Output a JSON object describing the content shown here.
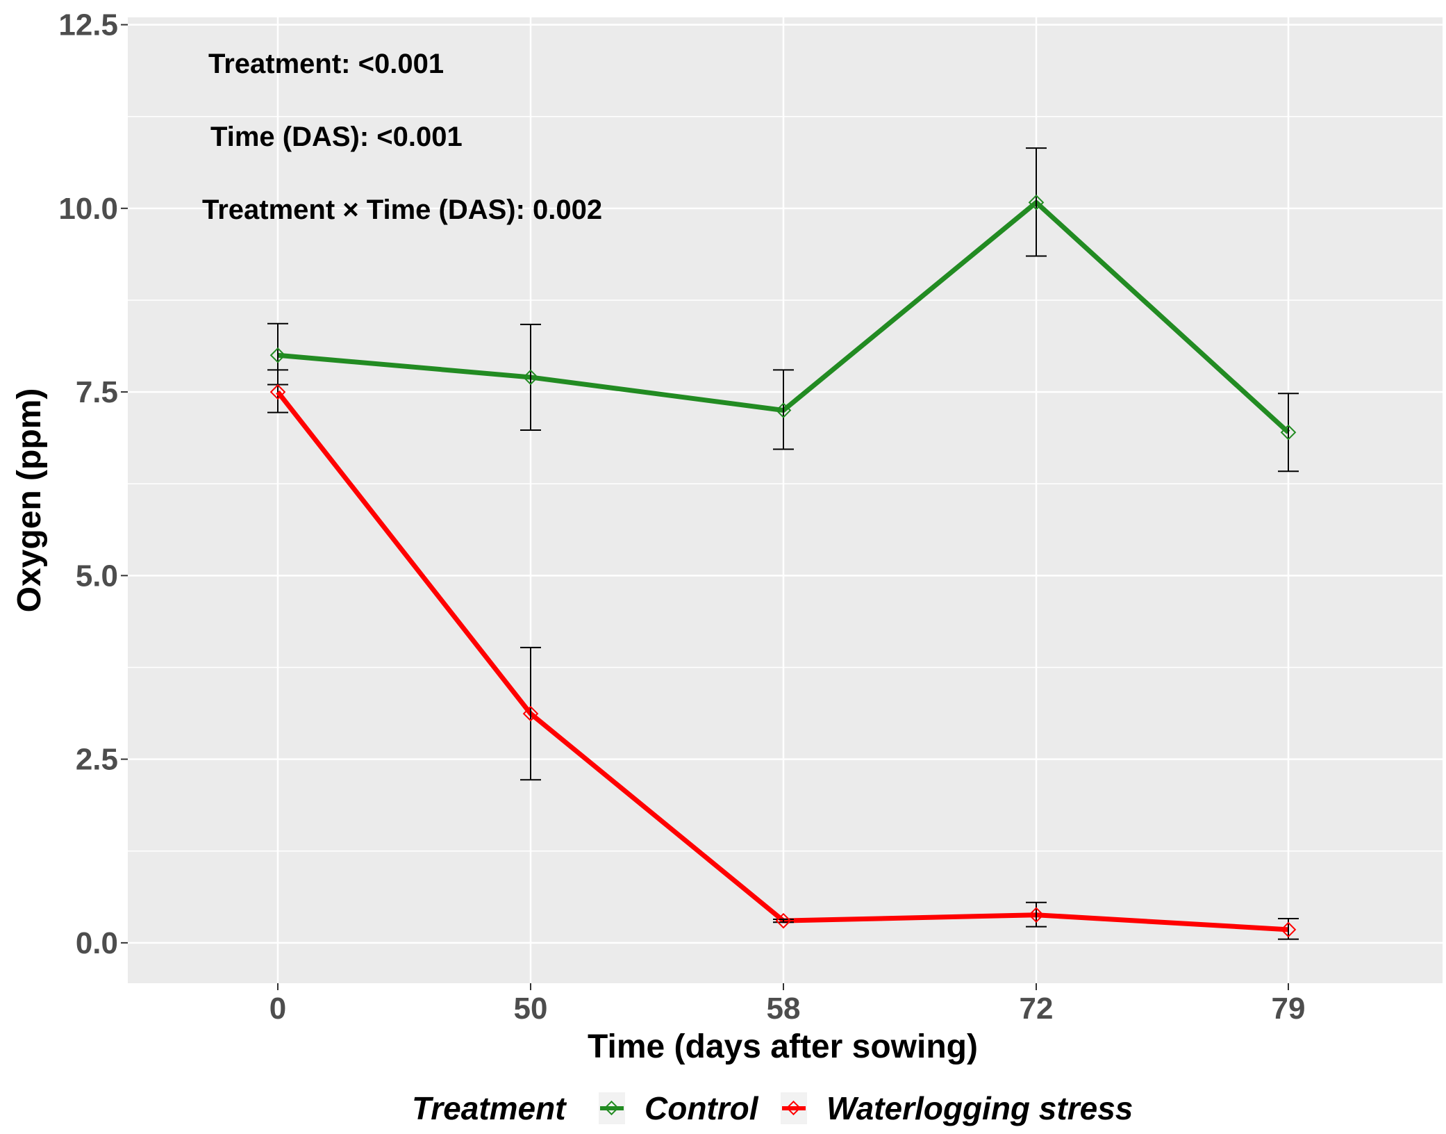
{
  "chart_data": {
    "type": "line",
    "xlabel": "Time (days after sowing)",
    "ylabel": "Oxygen (ppm)",
    "categories": [
      "0",
      "50",
      "58",
      "72",
      "79"
    ],
    "ylim": [
      -0.55,
      12.6
    ],
    "yticks": [
      0.0,
      2.5,
      5.0,
      7.5,
      10.0,
      12.5
    ],
    "ytick_labels": [
      "0.0",
      "2.5",
      "5.0",
      "7.5",
      "10.0",
      "12.5"
    ],
    "series": [
      {
        "name": "Control",
        "color": "#228B22",
        "values": [
          8.0,
          7.7,
          7.25,
          10.08,
          6.95
        ],
        "err_low": [
          7.22,
          6.98,
          6.72,
          9.35,
          6.42
        ],
        "err_high": [
          8.43,
          8.42,
          7.8,
          10.82,
          7.48
        ]
      },
      {
        "name": "Waterlogging stress",
        "color": "#FF0000",
        "values": [
          7.5,
          3.12,
          0.3,
          0.38,
          0.18
        ],
        "err_low": [
          7.8,
          2.22,
          0.28,
          0.22,
          0.05
        ],
        "err_high": [
          7.6,
          4.02,
          0.32,
          0.55,
          0.33
        ]
      }
    ],
    "annotations": [
      "Treatment: <0.001",
      "Time (DAS): <0.001",
      "Treatment × Time (DAS): 0.002"
    ],
    "legend": {
      "title": "Treatment",
      "position": "bottom"
    },
    "grid": true,
    "panel_color": "#EBEBEB"
  }
}
